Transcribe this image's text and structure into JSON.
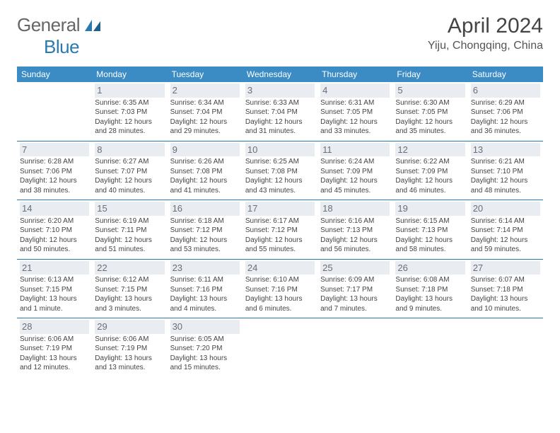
{
  "logo": {
    "general": "General",
    "blue": "Blue"
  },
  "title": "April 2024",
  "location": "Yiju, Chongqing, China",
  "colors": {
    "header_bg": "#3b8bc4",
    "header_text": "#ffffff",
    "week_border": "#2a7ab0",
    "daynum": "#6a6f78",
    "daynum_hl_bg": "#e9edf1",
    "body_text": "#444444",
    "logo_gray": "#666666",
    "logo_blue": "#2a7ab0"
  },
  "dayHeaders": [
    "Sunday",
    "Monday",
    "Tuesday",
    "Wednesday",
    "Thursday",
    "Friday",
    "Saturday"
  ],
  "weeks": [
    [
      null,
      {
        "n": "1",
        "sr": "Sunrise: 6:35 AM",
        "ss": "Sunset: 7:03 PM",
        "d1": "Daylight: 12 hours",
        "d2": "and 28 minutes."
      },
      {
        "n": "2",
        "sr": "Sunrise: 6:34 AM",
        "ss": "Sunset: 7:04 PM",
        "d1": "Daylight: 12 hours",
        "d2": "and 29 minutes."
      },
      {
        "n": "3",
        "sr": "Sunrise: 6:33 AM",
        "ss": "Sunset: 7:04 PM",
        "d1": "Daylight: 12 hours",
        "d2": "and 31 minutes."
      },
      {
        "n": "4",
        "sr": "Sunrise: 6:31 AM",
        "ss": "Sunset: 7:05 PM",
        "d1": "Daylight: 12 hours",
        "d2": "and 33 minutes."
      },
      {
        "n": "5",
        "sr": "Sunrise: 6:30 AM",
        "ss": "Sunset: 7:05 PM",
        "d1": "Daylight: 12 hours",
        "d2": "and 35 minutes."
      },
      {
        "n": "6",
        "sr": "Sunrise: 6:29 AM",
        "ss": "Sunset: 7:06 PM",
        "d1": "Daylight: 12 hours",
        "d2": "and 36 minutes."
      }
    ],
    [
      {
        "n": "7",
        "sr": "Sunrise: 6:28 AM",
        "ss": "Sunset: 7:06 PM",
        "d1": "Daylight: 12 hours",
        "d2": "and 38 minutes."
      },
      {
        "n": "8",
        "sr": "Sunrise: 6:27 AM",
        "ss": "Sunset: 7:07 PM",
        "d1": "Daylight: 12 hours",
        "d2": "and 40 minutes."
      },
      {
        "n": "9",
        "sr": "Sunrise: 6:26 AM",
        "ss": "Sunset: 7:08 PM",
        "d1": "Daylight: 12 hours",
        "d2": "and 41 minutes."
      },
      {
        "n": "10",
        "sr": "Sunrise: 6:25 AM",
        "ss": "Sunset: 7:08 PM",
        "d1": "Daylight: 12 hours",
        "d2": "and 43 minutes."
      },
      {
        "n": "11",
        "sr": "Sunrise: 6:24 AM",
        "ss": "Sunset: 7:09 PM",
        "d1": "Daylight: 12 hours",
        "d2": "and 45 minutes."
      },
      {
        "n": "12",
        "sr": "Sunrise: 6:22 AM",
        "ss": "Sunset: 7:09 PM",
        "d1": "Daylight: 12 hours",
        "d2": "and 46 minutes."
      },
      {
        "n": "13",
        "sr": "Sunrise: 6:21 AM",
        "ss": "Sunset: 7:10 PM",
        "d1": "Daylight: 12 hours",
        "d2": "and 48 minutes."
      }
    ],
    [
      {
        "n": "14",
        "sr": "Sunrise: 6:20 AM",
        "ss": "Sunset: 7:10 PM",
        "d1": "Daylight: 12 hours",
        "d2": "and 50 minutes."
      },
      {
        "n": "15",
        "sr": "Sunrise: 6:19 AM",
        "ss": "Sunset: 7:11 PM",
        "d1": "Daylight: 12 hours",
        "d2": "and 51 minutes."
      },
      {
        "n": "16",
        "sr": "Sunrise: 6:18 AM",
        "ss": "Sunset: 7:12 PM",
        "d1": "Daylight: 12 hours",
        "d2": "and 53 minutes."
      },
      {
        "n": "17",
        "sr": "Sunrise: 6:17 AM",
        "ss": "Sunset: 7:12 PM",
        "d1": "Daylight: 12 hours",
        "d2": "and 55 minutes."
      },
      {
        "n": "18",
        "sr": "Sunrise: 6:16 AM",
        "ss": "Sunset: 7:13 PM",
        "d1": "Daylight: 12 hours",
        "d2": "and 56 minutes."
      },
      {
        "n": "19",
        "sr": "Sunrise: 6:15 AM",
        "ss": "Sunset: 7:13 PM",
        "d1": "Daylight: 12 hours",
        "d2": "and 58 minutes."
      },
      {
        "n": "20",
        "sr": "Sunrise: 6:14 AM",
        "ss": "Sunset: 7:14 PM",
        "d1": "Daylight: 12 hours",
        "d2": "and 59 minutes."
      }
    ],
    [
      {
        "n": "21",
        "sr": "Sunrise: 6:13 AM",
        "ss": "Sunset: 7:15 PM",
        "d1": "Daylight: 13 hours",
        "d2": "and 1 minute."
      },
      {
        "n": "22",
        "sr": "Sunrise: 6:12 AM",
        "ss": "Sunset: 7:15 PM",
        "d1": "Daylight: 13 hours",
        "d2": "and 3 minutes."
      },
      {
        "n": "23",
        "sr": "Sunrise: 6:11 AM",
        "ss": "Sunset: 7:16 PM",
        "d1": "Daylight: 13 hours",
        "d2": "and 4 minutes."
      },
      {
        "n": "24",
        "sr": "Sunrise: 6:10 AM",
        "ss": "Sunset: 7:16 PM",
        "d1": "Daylight: 13 hours",
        "d2": "and 6 minutes."
      },
      {
        "n": "25",
        "sr": "Sunrise: 6:09 AM",
        "ss": "Sunset: 7:17 PM",
        "d1": "Daylight: 13 hours",
        "d2": "and 7 minutes."
      },
      {
        "n": "26",
        "sr": "Sunrise: 6:08 AM",
        "ss": "Sunset: 7:18 PM",
        "d1": "Daylight: 13 hours",
        "d2": "and 9 minutes."
      },
      {
        "n": "27",
        "sr": "Sunrise: 6:07 AM",
        "ss": "Sunset: 7:18 PM",
        "d1": "Daylight: 13 hours",
        "d2": "and 10 minutes."
      }
    ],
    [
      {
        "n": "28",
        "sr": "Sunrise: 6:06 AM",
        "ss": "Sunset: 7:19 PM",
        "d1": "Daylight: 13 hours",
        "d2": "and 12 minutes."
      },
      {
        "n": "29",
        "sr": "Sunrise: 6:06 AM",
        "ss": "Sunset: 7:19 PM",
        "d1": "Daylight: 13 hours",
        "d2": "and 13 minutes."
      },
      {
        "n": "30",
        "sr": "Sunrise: 6:05 AM",
        "ss": "Sunset: 7:20 PM",
        "d1": "Daylight: 13 hours",
        "d2": "and 15 minutes."
      },
      null,
      null,
      null,
      null
    ]
  ]
}
